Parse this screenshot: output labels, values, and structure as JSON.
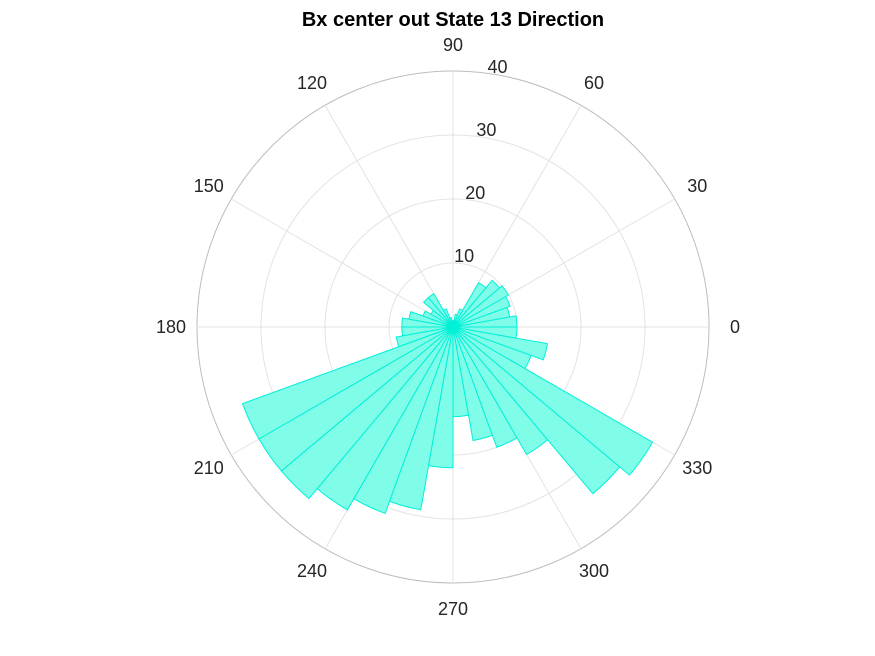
{
  "chart_data": {
    "type": "polar-histogram",
    "title": "Bx  center out State 13 Direction",
    "angle_unit": "degrees",
    "bin_width_deg": 10,
    "rlim": [
      0,
      40
    ],
    "r_ticks": [
      10,
      20,
      30,
      40
    ],
    "theta_ticks": [
      0,
      30,
      60,
      90,
      120,
      150,
      180,
      210,
      240,
      270,
      300,
      330
    ],
    "grid": true,
    "colors": {
      "fill": "#7ffde9",
      "stroke": "#00f0d8"
    },
    "bins": [
      {
        "start": 0,
        "value": 10
      },
      {
        "start": 10,
        "value": 9
      },
      {
        "start": 20,
        "value": 9.5
      },
      {
        "start": 30,
        "value": 10
      },
      {
        "start": 40,
        "value": 9.5
      },
      {
        "start": 50,
        "value": 8
      },
      {
        "start": 60,
        "value": 3
      },
      {
        "start": 70,
        "value": 2
      },
      {
        "start": 80,
        "value": 1
      },
      {
        "start": 90,
        "value": 1
      },
      {
        "start": 100,
        "value": 1.5
      },
      {
        "start": 110,
        "value": 3
      },
      {
        "start": 120,
        "value": 6
      },
      {
        "start": 130,
        "value": 6
      },
      {
        "start": 140,
        "value": 4
      },
      {
        "start": 150,
        "value": 5
      },
      {
        "start": 160,
        "value": 7
      },
      {
        "start": 170,
        "value": 8
      },
      {
        "start": 180,
        "value": 8
      },
      {
        "start": 190,
        "value": 9
      },
      {
        "start": 200,
        "value": 35
      },
      {
        "start": 210,
        "value": 35
      },
      {
        "start": 220,
        "value": 35
      },
      {
        "start": 230,
        "value": 33
      },
      {
        "start": 240,
        "value": 31
      },
      {
        "start": 250,
        "value": 29
      },
      {
        "start": 260,
        "value": 22
      },
      {
        "start": 270,
        "value": 14
      },
      {
        "start": 280,
        "value": 18
      },
      {
        "start": 290,
        "value": 20
      },
      {
        "start": 300,
        "value": 23
      },
      {
        "start": 310,
        "value": 34
      },
      {
        "start": 320,
        "value": 36
      },
      {
        "start": 330,
        "value": 13
      },
      {
        "start": 340,
        "value": 15
      },
      {
        "start": 350,
        "value": 10
      }
    ]
  }
}
